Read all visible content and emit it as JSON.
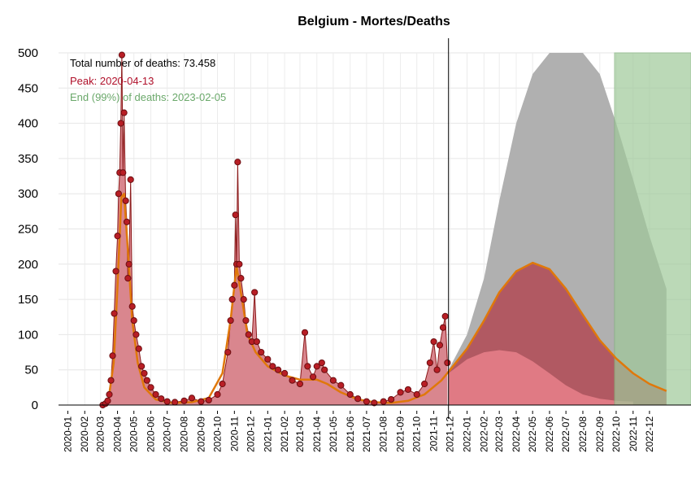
{
  "chart_data": {
    "type": "bar",
    "title": "Belgium - Mortes/Deaths",
    "xlabel": "",
    "ylabel": "",
    "ylim": [
      0,
      500
    ],
    "xlim": [
      "2019-12-15",
      "2023-02-15"
    ],
    "y_ticks": [
      0,
      50,
      100,
      150,
      200,
      250,
      300,
      350,
      400,
      450,
      500
    ],
    "x_ticks": [
      "2020-01",
      "2020-02",
      "2020-03",
      "2020-04",
      "2020-05",
      "2020-06",
      "2020-07",
      "2020-08",
      "2020-09",
      "2020-10",
      "2020-11",
      "2020-12",
      "2021-01",
      "2021-02",
      "2021-03",
      "2021-04",
      "2021-05",
      "2021-06",
      "2021-07",
      "2021-08",
      "2021-09",
      "2021-10",
      "2021-11",
      "2021-12",
      "2022-01",
      "2022-02",
      "2022-03",
      "2022-04",
      "2022-05",
      "2022-06",
      "2022-07",
      "2022-08",
      "2022-09",
      "2022-10",
      "2022-11",
      "2022-12"
    ],
    "grid": true,
    "annotations": {
      "total": "Total number of deaths: 73.458",
      "peak": "Peak: 2020-04-13",
      "end": "End (99%) of deaths: 2023-02-05"
    },
    "today_line": "2021-11-28",
    "end_region": {
      "from": "2022-09-28",
      "to": "2023-02-15"
    },
    "observed_daily_deaths": [
      [
        "2020-03-05",
        0
      ],
      [
        "2020-03-10",
        2
      ],
      [
        "2020-03-14",
        6
      ],
      [
        "2020-03-17",
        15
      ],
      [
        "2020-03-20",
        35
      ],
      [
        "2020-03-23",
        70
      ],
      [
        "2020-03-26",
        130
      ],
      [
        "2020-03-29",
        190
      ],
      [
        "2020-04-01",
        240
      ],
      [
        "2020-04-03",
        300
      ],
      [
        "2020-04-05",
        330
      ],
      [
        "2020-04-07",
        400
      ],
      [
        "2020-04-09",
        497
      ],
      [
        "2020-04-11",
        330
      ],
      [
        "2020-04-13",
        415
      ],
      [
        "2020-04-16",
        290
      ],
      [
        "2020-04-18",
        260
      ],
      [
        "2020-04-20",
        180
      ],
      [
        "2020-04-22",
        200
      ],
      [
        "2020-04-25",
        320
      ],
      [
        "2020-04-28",
        140
      ],
      [
        "2020-05-01",
        120
      ],
      [
        "2020-05-05",
        100
      ],
      [
        "2020-05-10",
        80
      ],
      [
        "2020-05-15",
        55
      ],
      [
        "2020-05-20",
        45
      ],
      [
        "2020-05-25",
        35
      ],
      [
        "2020-06-01",
        25
      ],
      [
        "2020-06-10",
        15
      ],
      [
        "2020-06-20",
        9
      ],
      [
        "2020-07-01",
        5
      ],
      [
        "2020-07-15",
        4
      ],
      [
        "2020-08-01",
        6
      ],
      [
        "2020-08-15",
        10
      ],
      [
        "2020-09-01",
        5
      ],
      [
        "2020-09-15",
        7
      ],
      [
        "2020-10-01",
        15
      ],
      [
        "2020-10-10",
        30
      ],
      [
        "2020-10-20",
        75
      ],
      [
        "2020-10-25",
        120
      ],
      [
        "2020-10-28",
        150
      ],
      [
        "2020-11-01",
        170
      ],
      [
        "2020-11-03",
        270
      ],
      [
        "2020-11-05",
        200
      ],
      [
        "2020-11-07",
        345
      ],
      [
        "2020-11-10",
        200
      ],
      [
        "2020-11-13",
        180
      ],
      [
        "2020-11-18",
        150
      ],
      [
        "2020-11-22",
        120
      ],
      [
        "2020-11-27",
        100
      ],
      [
        "2020-12-03",
        90
      ],
      [
        "2020-12-08",
        160
      ],
      [
        "2020-12-12",
        90
      ],
      [
        "2020-12-20",
        75
      ],
      [
        "2021-01-01",
        65
      ],
      [
        "2021-01-10",
        55
      ],
      [
        "2021-01-20",
        50
      ],
      [
        "2021-02-01",
        45
      ],
      [
        "2021-02-15",
        35
      ],
      [
        "2021-03-01",
        30
      ],
      [
        "2021-03-10",
        103
      ],
      [
        "2021-03-15",
        55
      ],
      [
        "2021-03-25",
        40
      ],
      [
        "2021-04-01",
        55
      ],
      [
        "2021-04-10",
        60
      ],
      [
        "2021-04-15",
        50
      ],
      [
        "2021-05-01",
        35
      ],
      [
        "2021-05-15",
        28
      ],
      [
        "2021-06-01",
        15
      ],
      [
        "2021-06-15",
        9
      ],
      [
        "2021-07-01",
        5
      ],
      [
        "2021-07-15",
        3
      ],
      [
        "2021-08-01",
        5
      ],
      [
        "2021-08-15",
        8
      ],
      [
        "2021-09-01",
        18
      ],
      [
        "2021-09-15",
        22
      ],
      [
        "2021-10-01",
        15
      ],
      [
        "2021-10-15",
        30
      ],
      [
        "2021-10-25",
        60
      ],
      [
        "2021-11-01",
        90
      ],
      [
        "2021-11-07",
        50
      ],
      [
        "2021-11-12",
        85
      ],
      [
        "2021-11-18",
        110
      ],
      [
        "2021-11-22",
        126
      ],
      [
        "2021-11-26",
        60
      ]
    ],
    "series": [
      {
        "name": "",
        "kind": "fitted-curve",
        "color": "#e0780a",
        "points": [
          [
            "2020-03-01",
            0
          ],
          [
            "2020-03-15",
            5
          ],
          [
            "2020-03-25",
            60
          ],
          [
            "2020-04-01",
            170
          ],
          [
            "2020-04-08",
            295
          ],
          [
            "2020-04-13",
            300
          ],
          [
            "2020-04-20",
            220
          ],
          [
            "2020-04-28",
            120
          ],
          [
            "2020-05-08",
            60
          ],
          [
            "2020-05-20",
            25
          ],
          [
            "2020-06-10",
            8
          ],
          [
            "2020-07-10",
            3
          ],
          [
            "2020-08-15",
            4
          ],
          [
            "2020-09-15",
            10
          ],
          [
            "2020-10-10",
            45
          ],
          [
            "2020-10-25",
            120
          ],
          [
            "2020-11-05",
            197
          ],
          [
            "2020-11-15",
            150
          ],
          [
            "2020-11-25",
            100
          ],
          [
            "2020-12-10",
            75
          ],
          [
            "2021-01-01",
            55
          ],
          [
            "2021-02-01",
            42
          ],
          [
            "2021-03-01",
            36
          ],
          [
            "2021-04-01",
            36
          ],
          [
            "2021-04-20",
            30
          ],
          [
            "2021-05-15",
            18
          ],
          [
            "2021-06-15",
            8
          ],
          [
            "2021-07-15",
            4
          ],
          [
            "2021-08-15",
            3
          ],
          [
            "2021-09-15",
            6
          ],
          [
            "2021-10-15",
            15
          ],
          [
            "2021-11-15",
            35
          ],
          [
            "2021-12-01",
            50
          ],
          [
            "2022-01-01",
            80
          ],
          [
            "2022-02-01",
            120
          ],
          [
            "2022-03-01",
            160
          ],
          [
            "2022-04-01",
            190
          ],
          [
            "2022-05-01",
            202
          ],
          [
            "2022-06-01",
            193
          ],
          [
            "2022-07-01",
            165
          ],
          [
            "2022-08-01",
            128
          ],
          [
            "2022-09-01",
            92
          ],
          [
            "2022-10-01",
            66
          ],
          [
            "2022-11-01",
            45
          ],
          [
            "2022-12-01",
            30
          ],
          [
            "2023-01-01",
            20
          ]
        ]
      },
      {
        "name": "",
        "kind": "projected-upper",
        "color": "#b0b0b0",
        "points": [
          [
            "2021-11-28",
            50
          ],
          [
            "2022-01-01",
            100
          ],
          [
            "2022-02-01",
            180
          ],
          [
            "2022-03-01",
            290
          ],
          [
            "2022-04-01",
            400
          ],
          [
            "2022-05-01",
            470
          ],
          [
            "2022-06-01",
            500
          ],
          [
            "2022-07-01",
            500
          ],
          [
            "2022-08-01",
            500
          ],
          [
            "2022-09-01",
            470
          ],
          [
            "2022-10-01",
            400
          ],
          [
            "2022-11-01",
            320
          ],
          [
            "2022-12-01",
            240
          ],
          [
            "2023-01-01",
            165
          ]
        ]
      },
      {
        "name": "",
        "kind": "projected-lower",
        "color": "#e07a84",
        "points": [
          [
            "2021-11-28",
            45
          ],
          [
            "2022-01-01",
            65
          ],
          [
            "2022-02-01",
            75
          ],
          [
            "2022-03-01",
            78
          ],
          [
            "2022-04-01",
            75
          ],
          [
            "2022-05-01",
            62
          ],
          [
            "2022-06-01",
            45
          ],
          [
            "2022-07-01",
            28
          ],
          [
            "2022-08-01",
            15
          ],
          [
            "2022-09-01",
            9
          ],
          [
            "2022-10-01",
            6
          ],
          [
            "2022-11-01",
            5
          ]
        ]
      }
    ],
    "colors": {
      "observed_fill": "#d9868e",
      "observed_line": "#8b1a1a",
      "point_fill": "#b81e25",
      "point_stroke": "#6b0f12",
      "fitted_area": "#b24a55",
      "projection_upper": "#b0b0b0",
      "projection_lower": "#e07a84",
      "curve": "#e0780a",
      "end_region": "#9fc99a",
      "annotation_total": "#000000",
      "annotation_peak": "#b0102a",
      "annotation_end": "#6aa86a"
    }
  }
}
